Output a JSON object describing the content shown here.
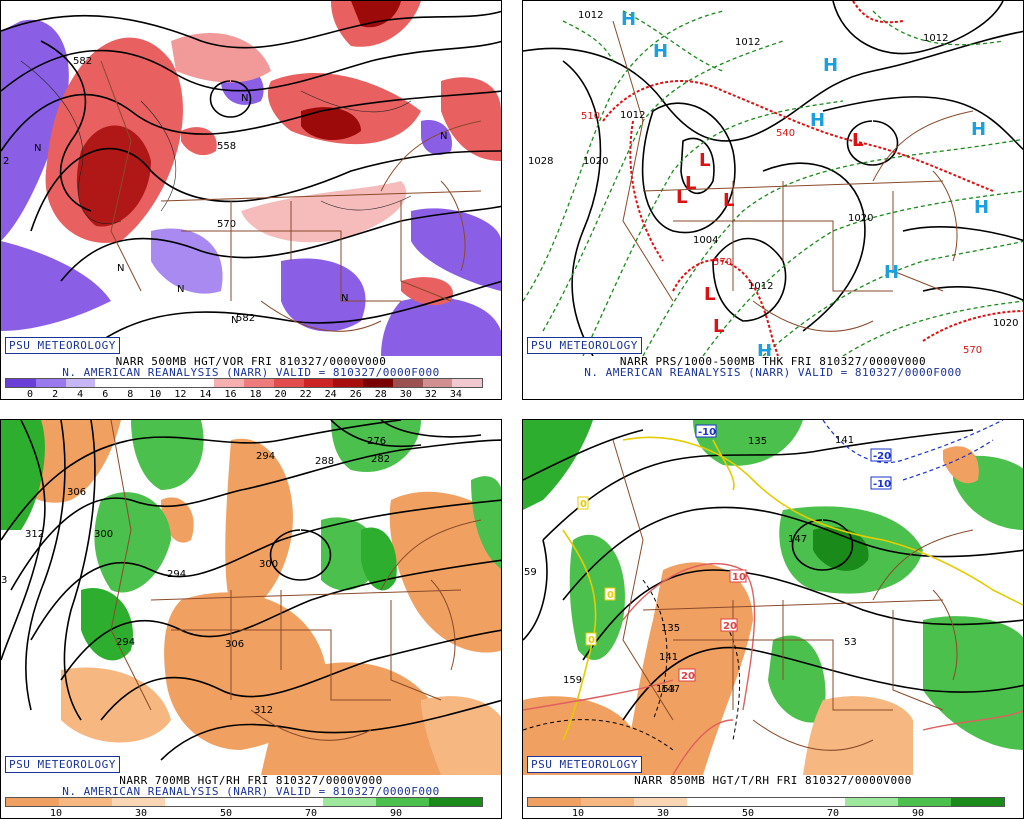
{
  "panels": [
    {
      "id": "vor500",
      "psu": "PSU METEOROLOGY",
      "caption1": "NARR 500MB HGT/VOR FRI 810327/0000V000",
      "caption2": "N. AMERICAN REANALYSIS (NARR) VALID = 810327/0000F000",
      "colorbar_colors": [
        "#6a3fd8",
        "#9a78ee",
        "#c6b6f6",
        "#ffffff",
        "#ffffff",
        "#ffffff",
        "#ffffff",
        "#f7b0b0",
        "#ef7c7c",
        "#e24c4c",
        "#cc2424",
        "#a80e0e",
        "#7a0000",
        "#9c5050",
        "#d09090",
        "#f0c8d0"
      ],
      "colorbar_ticks": [
        "0",
        "2",
        "4",
        "6",
        "8",
        "10",
        "12",
        "14",
        "16",
        "18",
        "20",
        "22",
        "24",
        "26",
        "28",
        "30",
        "32",
        "34"
      ],
      "map_labels": [
        "582",
        "558",
        "570",
        "582",
        "N",
        "N",
        "N",
        "N",
        "N",
        "N",
        "N",
        "2"
      ]
    },
    {
      "id": "prs1000",
      "psu": "PSU METEOROLOGY",
      "caption1": "NARR PRS/1000-500MB THK FRI 810327/0000V000",
      "caption2": "N. AMERICAN REANALYSIS (NARR) VALID = 810327/0000F000",
      "map_labels": [
        "1012",
        "1012",
        "1012",
        "510",
        "1028",
        "1020",
        "540",
        "1004",
        "570",
        "1012",
        "1020",
        "570",
        "1020",
        "1012"
      ],
      "highs": [
        "H",
        "H",
        "H",
        "H",
        "H",
        "H",
        "H",
        "H"
      ],
      "lows": [
        "L",
        "L",
        "L",
        "L",
        "L",
        "L",
        "L"
      ]
    },
    {
      "id": "rh700",
      "psu": "PSU METEOROLOGY",
      "caption1": "NARR 700MB HGT/RH FRI 810327/0000V000",
      "caption2": "N. AMERICAN REANALYSIS (NARR) VALID = 810327/0000F000",
      "colorbar_colors": [
        "#f0a060",
        "#f6b880",
        "#fbd6b4",
        "#ffffff",
        "#ffffff",
        "#ffffff",
        "#9ee89e",
        "#4cc04c",
        "#1a8a1a"
      ],
      "colorbar_ticks": [
        "10",
        "30",
        "50",
        "70",
        "90"
      ],
      "map_labels": [
        "306",
        "312",
        "300",
        "294",
        "288",
        "282",
        "276",
        "294",
        "300",
        "306",
        "312",
        "3",
        "294"
      ]
    },
    {
      "id": "t850",
      "psu": "PSU METEOROLOGY",
      "caption1": "NARR 850MB HGT/T/RH FRI 810327/0000V000",
      "caption2": "",
      "colorbar_colors": [
        "#f0a060",
        "#f6b880",
        "#fbd6b4",
        "#ffffff",
        "#ffffff",
        "#ffffff",
        "#9ee89e",
        "#4cc04c",
        "#1a8a1a"
      ],
      "colorbar_ticks": [
        "10",
        "30",
        "50",
        "70",
        "90"
      ],
      "map_labels": [
        "159",
        "135",
        "141",
        "147",
        "153",
        "147",
        "59",
        "53",
        "135",
        "141"
      ],
      "temp_labels": [
        "-10",
        "-20",
        "-10",
        "10",
        "20",
        "20",
        "0",
        "0",
        "0"
      ]
    }
  ]
}
